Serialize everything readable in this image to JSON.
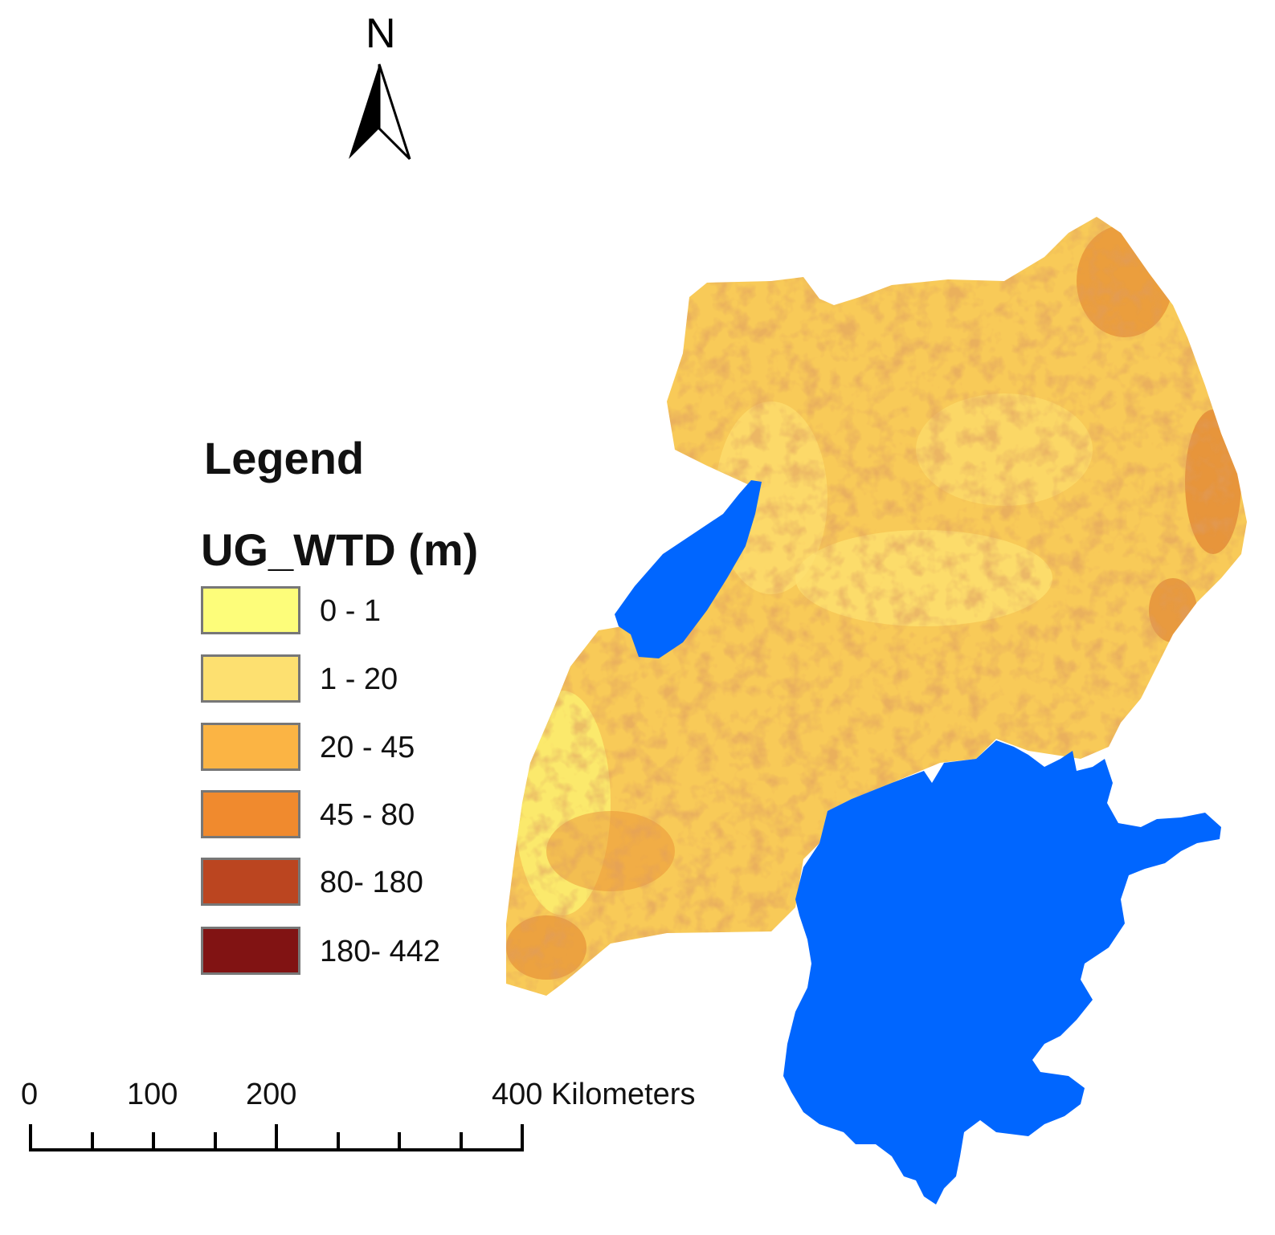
{
  "north_arrow": {
    "label": "N"
  },
  "legend": {
    "title": "Legend",
    "layer_name": "UG_WTD (m)",
    "items": [
      {
        "label": "0 - 1",
        "color": "#fdfd7a"
      },
      {
        "label": "1 - 20",
        "color": "#fde070"
      },
      {
        "label": "20 - 45",
        "color": "#fbb444"
      },
      {
        "label": "45 - 80",
        "color": "#f08a2e"
      },
      {
        "label": "80- 180",
        "color": "#bb4520"
      },
      {
        "label": "180- 442",
        "color": "#811313"
      }
    ]
  },
  "scale_bar": {
    "labels": [
      "0",
      "100",
      "200",
      "400 Kilometers"
    ]
  },
  "colors": {
    "water": "#0066ff",
    "land_base": "#f8ca58"
  }
}
